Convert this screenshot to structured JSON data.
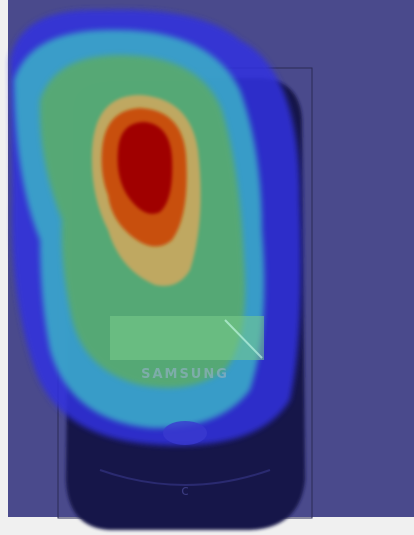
{
  "phone": {
    "brand": "SAMSUNG"
  }
}
